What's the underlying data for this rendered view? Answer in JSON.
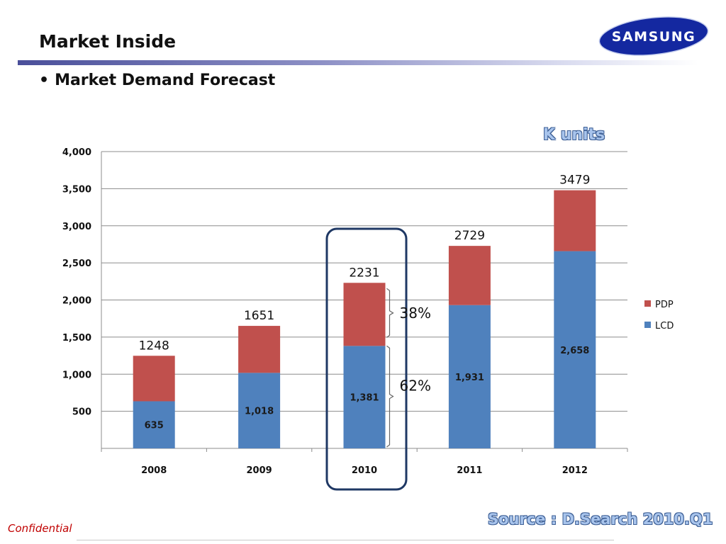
{
  "header": {
    "title": "Market Inside",
    "bullet": "Market Demand Forecast",
    "logo_text": "SAMSUNG"
  },
  "footer": {
    "confidential": "Confidential",
    "source": "Source : D.Search 2010.Q1"
  },
  "units_label": "K units",
  "highlight": {
    "category": "2010",
    "shares": [
      {
        "series": "PDP",
        "label": "38%"
      },
      {
        "series": "LCD",
        "label": "62%"
      }
    ]
  },
  "colors": {
    "lcd": "#4f81bd",
    "pdp": "#c0504d",
    "grid": "#8c8c8c",
    "highlight_border": "#1f3864"
  },
  "chart_data": {
    "type": "bar",
    "stacked": true,
    "categories": [
      "2008",
      "2009",
      "2010",
      "2011",
      "2012"
    ],
    "series": [
      {
        "name": "LCD",
        "values": [
          635,
          1018,
          1381,
          1931,
          2658
        ],
        "labels": [
          "635",
          "1,018",
          "1,381",
          "1,931",
          "2,658"
        ]
      },
      {
        "name": "PDP",
        "values": [
          613,
          633,
          850,
          798,
          821
        ]
      }
    ],
    "totals": [
      1248,
      1651,
      2231,
      2729,
      3479
    ],
    "total_labels": [
      "1248",
      "1651",
      "2231",
      "2729",
      "3479"
    ],
    "ylim": [
      0,
      4000
    ],
    "y_ticks": [
      500,
      1000,
      1500,
      2000,
      2500,
      3000,
      3500,
      4000
    ],
    "y_tick_labels": [
      "500",
      "1,000",
      "1,500",
      "2,000",
      "2,500",
      "3,000",
      "3,500",
      "4,000"
    ],
    "grid": true,
    "legend_position": "right",
    "legend": [
      "PDP",
      "LCD"
    ]
  }
}
